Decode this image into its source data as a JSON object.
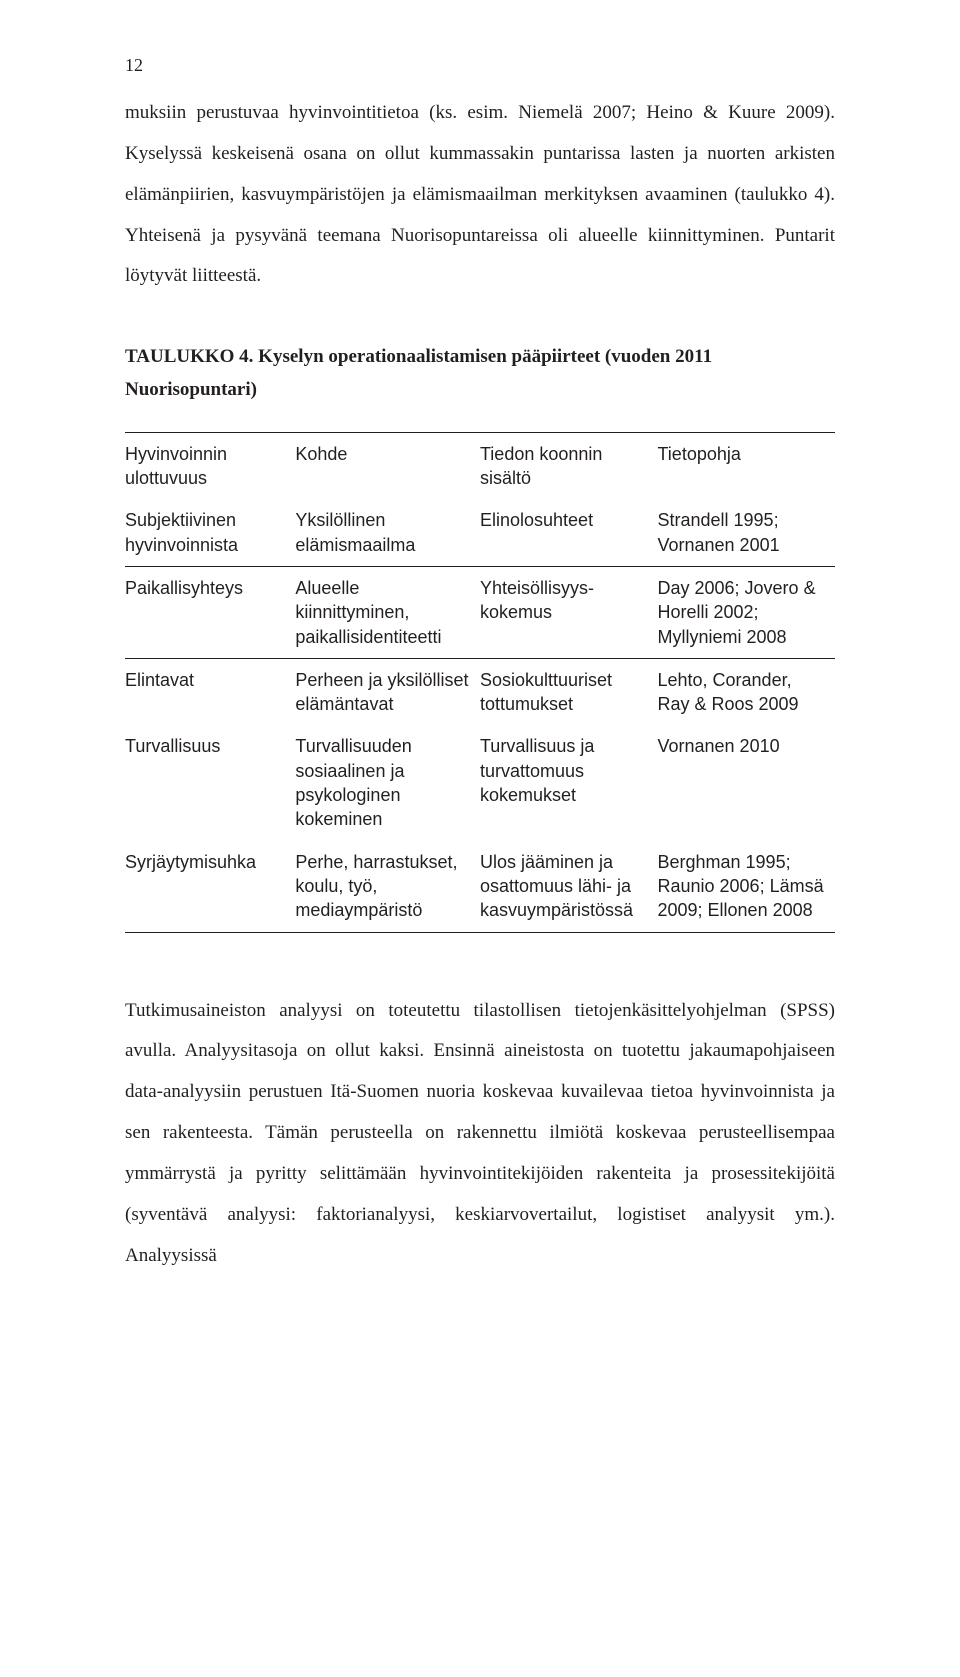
{
  "pageNumber": "12",
  "para1": "muksiin perustuvaa hyvinvointitietoa (ks. esim. Niemelä 2007; Heino & Kuure 2009). Kyselyssä keskeisenä osana on ollut kummassakin puntarissa lasten ja nuorten arkisten elämänpiirien, kasvuympäristöjen ja elämismaailman merkityksen avaaminen (taulukko 4). Yhteisenä ja pysyvänä teemana Nuorisopuntareissa oli alueelle kiinnittyminen. Puntarit löytyvät liitteestä.",
  "tableTitle": "TAULUKKO 4. Kyselyn operationaalistamisen pääpiirteet (vuoden 2011 Nuorisopuntari)",
  "headers": {
    "c1": "Hyvinvoinnin ulottuvuus",
    "c2": "Kohde",
    "c3": "Tiedon koonnin sisältö",
    "c4": "Tietopohja"
  },
  "r1": {
    "c1": "Subjektiivinen hyvinvoinnista",
    "c2": "Yksilöllinen elämismaailma",
    "c3": "Elinolosuhteet",
    "c4": "Strandell 1995; Vornanen 2001"
  },
  "r2": {
    "c1": "Paikallisyhteys",
    "c2": "Alueelle kiinnittyminen, paikallisidentiteetti",
    "c3": "Yhteisöllisyys-kokemus",
    "c4": "Day 2006; Jovero & Horelli 2002; Myllyniemi 2008"
  },
  "r3": {
    "c1": "Elintavat",
    "c2": "Perheen ja yksilölliset elämäntavat",
    "c3": "Sosiokulttuuriset tottumukset",
    "c4": "Lehto, Corander, Ray & Roos 2009"
  },
  "r4": {
    "c1": "Turvallisuus",
    "c2": "Turvallisuuden sosiaalinen ja psykologinen kokeminen",
    "c3": "Turvallisuus ja turvattomuus kokemukset",
    "c4": "Vornanen 2010"
  },
  "r5": {
    "c1": "Syrjäytymisuhka",
    "c2": "Perhe, harrastukset, koulu, työ, mediaympäristö",
    "c3": "Ulos jääminen ja osattomuus lähi- ja kasvuympäristössä",
    "c4": "Berghman 1995; Raunio 2006; Lämsä 2009; Ellonen 2008"
  },
  "para2": "Tutkimusaineiston analyysi on toteutettu tilastollisen tietojenkäsittelyohjelman (SPSS) avulla. Analyysitasoja on ollut kaksi. Ensinnä aineistosta on tuotettu jakaumapohjaiseen data-analyysiin perustuen Itä-Suomen nuoria koskevaa kuvailevaa tietoa hyvinvoinnista ja sen rakenteesta. Tämän perusteella on rakennettu ilmiötä koskevaa perusteellisempaa ymmärrystä ja pyritty selittämään hyvinvointitekijöiden rakenteita ja prosessitekijöitä (syventävä analyysi: faktorianalyysi, keskiarvovertailut, logistiset analyysit ym.). Analyysissä"
}
